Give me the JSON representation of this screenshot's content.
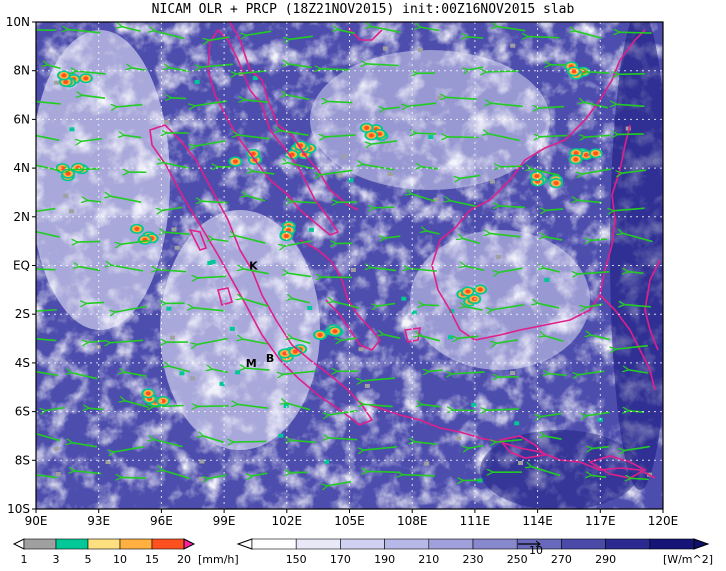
{
  "title": "NICAM OLR + PRCP (18Z21NOV2015) init:00Z16NOV2015 slab",
  "map": {
    "lat_range": [
      -10,
      10
    ],
    "lon_range": [
      90,
      120
    ],
    "lat_ticks": [
      "10N",
      "8N",
      "6N",
      "4N",
      "2N",
      "EQ",
      "2S",
      "4S",
      "6S",
      "8S",
      "10S"
    ],
    "lon_ticks": [
      "90E",
      "93E",
      "96E",
      "99E",
      "102E",
      "105E",
      "108E",
      "111E",
      "114E",
      "117E",
      "120E"
    ],
    "gridlines": true,
    "markers": [
      {
        "label": "K",
        "lon": 100.4,
        "lat": 0.0
      },
      {
        "label": "M",
        "lon": 100.3,
        "lat": -4.0
      },
      {
        "label": "B",
        "lon": 101.2,
        "lat": -3.8
      }
    ],
    "coastline_color": "#e0208a",
    "wind_vector_color": "#22cc22"
  },
  "precip_colorbar": {
    "labels": [
      "1",
      "3",
      "5",
      "10",
      "15",
      "20"
    ],
    "unit": "[mm/h]",
    "colors": [
      "#a0a0a0",
      "#00c896",
      "#ffe080",
      "#ffb040",
      "#ff5020",
      "#ff20a0"
    ]
  },
  "olr_colorbar": {
    "labels": [
      "150",
      "170",
      "190",
      "210",
      "230",
      "250",
      "270",
      "290"
    ],
    "unit": "[W/m^2]",
    "colors": [
      "#ffffff",
      "#e8e8f8",
      "#d0d0f0",
      "#b8b8e8",
      "#a0a0dc",
      "#8888cc",
      "#6a6abc",
      "#4a4aa8",
      "#2a2a90",
      "#151578"
    ],
    "ref_vector_label": "10"
  }
}
